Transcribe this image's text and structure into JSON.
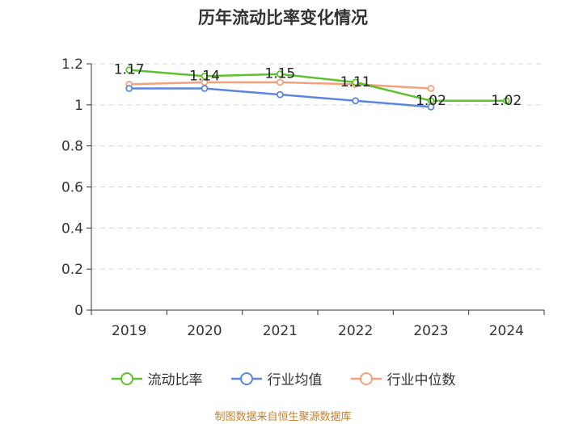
{
  "title": "历年流动比率变化情况",
  "source": "制图数据来自恒生聚源数据库",
  "colors": {
    "axis": "#333333",
    "grid": "#d6d6d6",
    "label": "#222222"
  },
  "chart_data": {
    "type": "line",
    "categories": [
      "2019",
      "2020",
      "2021",
      "2022",
      "2023",
      "2024"
    ],
    "ylim": [
      0,
      1.2
    ],
    "yticks": [
      0,
      0.2,
      0.4,
      0.6,
      0.8,
      1,
      1.2
    ],
    "ytick_labels": [
      "0",
      "0.2",
      "0.4",
      "0.6",
      "0.8",
      "1",
      "1.2"
    ],
    "grid": "horizontal dashed",
    "legend_position": "bottom",
    "series": [
      {
        "name": "流动比率",
        "color": "#5cc22e",
        "values": [
          1.17,
          1.14,
          1.15,
          1.11,
          1.02,
          1.02
        ],
        "labels": [
          "1.17",
          "1.14",
          "1.15",
          "1.11",
          "1.02",
          "1.02"
        ]
      },
      {
        "name": "行业均值",
        "color": "#5b86e0",
        "values": [
          1.08,
          1.08,
          1.05,
          1.02,
          0.99,
          null
        ]
      },
      {
        "name": "行业中位数",
        "color": "#f4a07c",
        "values": [
          1.1,
          1.11,
          1.11,
          1.1,
          1.08,
          null
        ]
      }
    ]
  }
}
